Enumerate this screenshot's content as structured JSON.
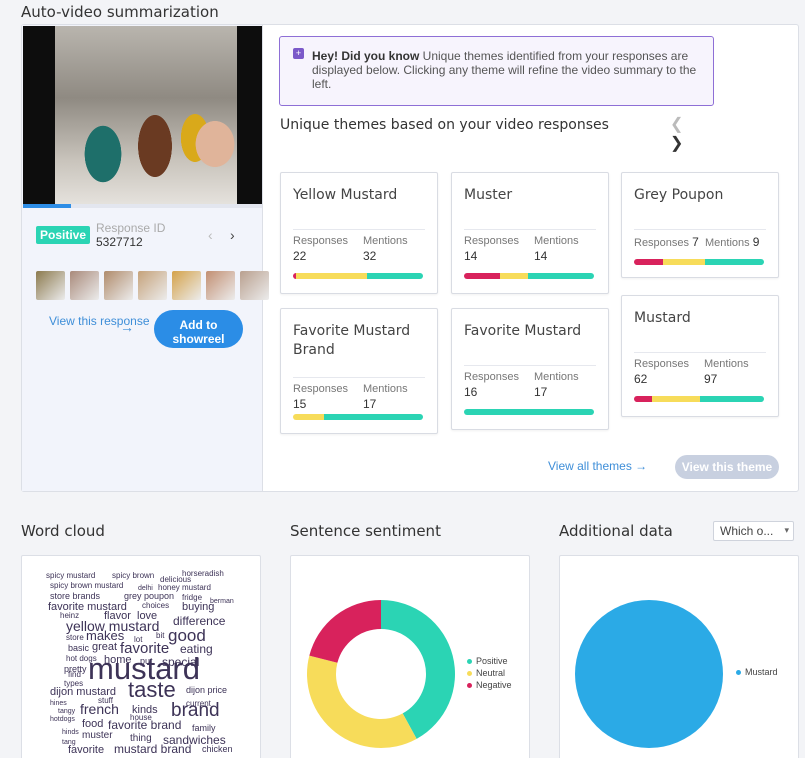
{
  "titles": {
    "auto_video": "Auto-video summarization",
    "word_cloud": "Word cloud",
    "sentence_sentiment": "Sentence sentiment",
    "additional_data": "Additional data"
  },
  "colors": {
    "positive": "#2bd4b4",
    "neutral": "#f7dc5a",
    "negative": "#d8225c",
    "primary": "#2b8de6",
    "tip_border": "#8e6fd6"
  },
  "response": {
    "sentiment_badge": "Positive",
    "id_label": "Response ID",
    "id_value": "5327712",
    "prev_icon": "chevron-left-icon",
    "next_icon": "chevron-right-icon",
    "view_link": "View this response",
    "arrow": "→",
    "add_button": "Add to showreel",
    "video_progress": 0.2,
    "thumbnails": [
      "#8c7a4e",
      "#a98a7a",
      "#b08b6b",
      "#c5a27a",
      "#d4a24a",
      "#c28f72",
      "#b9a08f"
    ]
  },
  "tip": {
    "icon": "sparkle-chat-icon",
    "bold": "Hey! Did you know",
    "text": " Unique themes identified from your responses are displayed below. Clicking any theme will refine the video summary to the left."
  },
  "themes_heading": "Unique themes based on your video responses",
  "themes": [
    {
      "title": "Yellow Mustard",
      "responses_label": "Responses",
      "responses": "22",
      "mentions_label": "Mentions",
      "mentions": "32",
      "sentiment": [
        0.02,
        0.55,
        0.43
      ]
    },
    {
      "title": "Muster",
      "responses_label": "Responses",
      "responses": "14",
      "mentions_label": "Mentions",
      "mentions": "14",
      "sentiment": [
        0.28,
        0.21,
        0.51
      ]
    },
    {
      "title": "Grey Poupon",
      "responses_label": "Responses",
      "responses": "7",
      "mentions_label": "Mentions",
      "mentions": "9",
      "sentiment": [
        0.22,
        0.33,
        0.45
      ]
    },
    {
      "title": "Favorite Mustard Brand",
      "responses_label": "Responses",
      "responses": "15",
      "mentions_label": "Mentions",
      "mentions": "17",
      "sentiment": [
        0,
        0.24,
        0.76
      ]
    },
    {
      "title": "Favorite Mustard",
      "responses_label": "Responses",
      "responses": "16",
      "mentions_label": "Mentions",
      "mentions": "17",
      "sentiment": [
        0,
        0,
        1
      ]
    },
    {
      "title": "Mustard",
      "responses_label": "Responses",
      "responses": "62",
      "mentions_label": "Mentions",
      "mentions": "97",
      "sentiment": [
        0.14,
        0.37,
        0.49
      ]
    }
  ],
  "view_all": "View all themes",
  "view_all_arrow": "→",
  "view_theme_button": "View this theme",
  "word_cloud": [
    {
      "t": "spicy mustard",
      "s": 8
    },
    {
      "t": "spicy brown",
      "s": 8
    },
    {
      "t": "delicious",
      "s": 8
    },
    {
      "t": "horseradish",
      "s": 8
    },
    {
      "t": "spicy brown mustard",
      "s": 8
    },
    {
      "t": "delhi",
      "s": 7
    },
    {
      "t": "honey mustard",
      "s": 8
    },
    {
      "t": "store brands",
      "s": 9
    },
    {
      "t": "grey poupon",
      "s": 9
    },
    {
      "t": "fridge",
      "s": 8
    },
    {
      "t": "favorite mustard",
      "s": 11
    },
    {
      "t": "choices",
      "s": 8
    },
    {
      "t": "buying",
      "s": 11
    },
    {
      "t": "berman",
      "s": 7
    },
    {
      "t": "heinz",
      "s": 8
    },
    {
      "t": "flavor",
      "s": 11
    },
    {
      "t": "love",
      "s": 11
    },
    {
      "t": "yellow mustard",
      "s": 14
    },
    {
      "t": "difference",
      "s": 12
    },
    {
      "t": "makes",
      "s": 13
    },
    {
      "t": "store",
      "s": 8
    },
    {
      "t": "lot",
      "s": 8
    },
    {
      "t": "bit",
      "s": 8
    },
    {
      "t": "good",
      "s": 17
    },
    {
      "t": "basic",
      "s": 9
    },
    {
      "t": "great",
      "s": 11
    },
    {
      "t": "favorite",
      "s": 15
    },
    {
      "t": "eating",
      "s": 12
    },
    {
      "t": "hot dogs",
      "s": 8
    },
    {
      "t": "home",
      "s": 11
    },
    {
      "t": "put",
      "s": 9
    },
    {
      "t": "special",
      "s": 12
    },
    {
      "t": "pretty",
      "s": 9
    },
    {
      "t": "mustard",
      "s": 31
    },
    {
      "t": "find",
      "s": 8
    },
    {
      "t": "types",
      "s": 8
    },
    {
      "t": "dijon mustard",
      "s": 11
    },
    {
      "t": "taste",
      "s": 22
    },
    {
      "t": "dijon price",
      "s": 9
    },
    {
      "t": "hines",
      "s": 7
    },
    {
      "t": "stuff",
      "s": 8
    },
    {
      "t": "current",
      "s": 8
    },
    {
      "t": "tangy",
      "s": 7
    },
    {
      "t": "french",
      "s": 14
    },
    {
      "t": "kinds",
      "s": 11
    },
    {
      "t": "brand",
      "s": 19
    },
    {
      "t": "hotdogs",
      "s": 7
    },
    {
      "t": "house",
      "s": 8
    },
    {
      "t": "food",
      "s": 11
    },
    {
      "t": "favorite brand",
      "s": 12
    },
    {
      "t": "family",
      "s": 9
    },
    {
      "t": "hinds",
      "s": 7
    },
    {
      "t": "muster",
      "s": 10
    },
    {
      "t": "tang",
      "s": 7
    },
    {
      "t": "thing",
      "s": 10
    },
    {
      "t": "sandwiches",
      "s": 12
    },
    {
      "t": "favorite",
      "s": 11
    },
    {
      "t": "mustard brand",
      "s": 12
    },
    {
      "t": "chicken",
      "s": 9
    }
  ],
  "sentiment_chart": {
    "legend": [
      {
        "label": "Positive",
        "color": "#2bd4b4"
      },
      {
        "label": "Neutral",
        "color": "#f7dc5a"
      },
      {
        "label": "Negative",
        "color": "#d8225c"
      }
    ],
    "values": [
      0.42,
      0.37,
      0.21
    ]
  },
  "additional": {
    "dropdown": "Which o...",
    "dropdown_caret": "▾",
    "legend": [
      {
        "label": "Mustard",
        "color": "#2baae6"
      }
    ],
    "values": [
      1
    ]
  }
}
